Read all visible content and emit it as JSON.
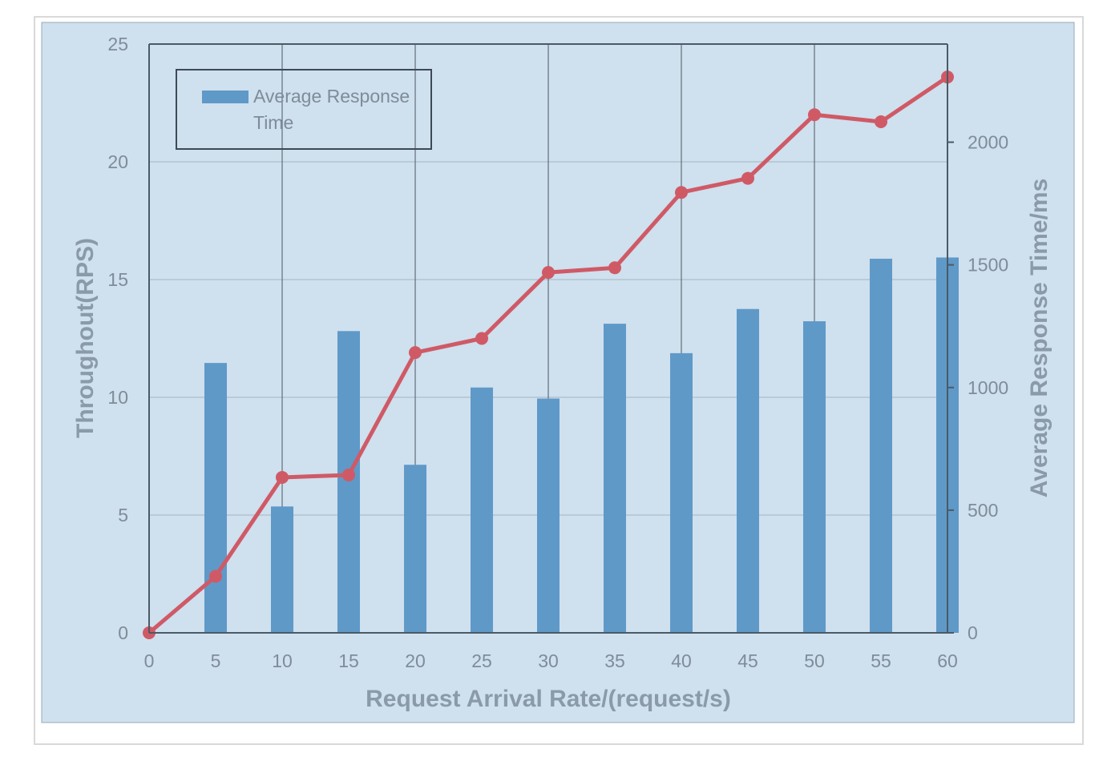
{
  "chart_data": {
    "type": "bar+line",
    "x": [
      0,
      5,
      10,
      15,
      20,
      25,
      30,
      35,
      40,
      45,
      50,
      55,
      60
    ],
    "xlabel": "Request Arrival Rate/(request/s)",
    "ylabel_left": "Throughout(RPS)",
    "ylabel_right": "Average Response Time/ms",
    "ylim_left": [
      0,
      25
    ],
    "ylim_right": [
      0,
      2400
    ],
    "yticks_left": [
      0,
      5,
      10,
      15,
      20,
      25
    ],
    "yticks_right": [
      0,
      500,
      1000,
      1500,
      2000
    ],
    "bars": {
      "name": "Average Response Time",
      "axis": "right",
      "color": "#5f99c8",
      "values": [
        null,
        1100,
        515,
        1230,
        685,
        1000,
        955,
        1260,
        1140,
        1320,
        1270,
        1525,
        1530
      ]
    },
    "line": {
      "axis": "left",
      "color": "#cf5a66",
      "values": [
        0,
        2.4,
        6.6,
        6.7,
        11.9,
        12.5,
        15.3,
        15.5,
        18.7,
        19.3,
        22.0,
        21.7,
        23.6
      ]
    },
    "legend": {
      "position": "top-left",
      "entries": [
        "Average Response",
        "Time"
      ]
    },
    "grid": true,
    "colors": {
      "plot_background": "#cfe0ee",
      "grid": "#b9cad8",
      "axis": "#4a5a66"
    }
  }
}
